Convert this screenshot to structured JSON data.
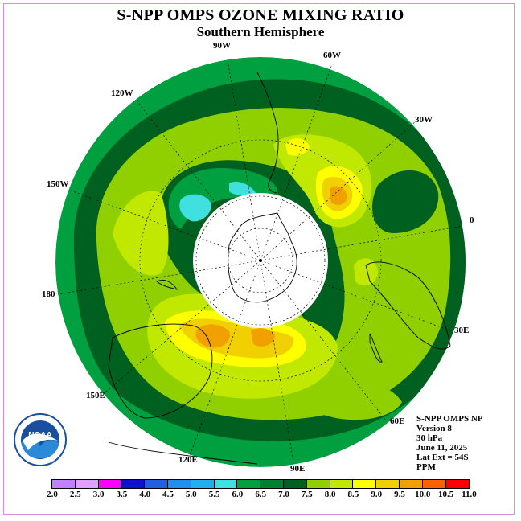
{
  "title": "S-NPP OMPS OZONE MIXING RATIO",
  "subtitle": "Southern Hemisphere",
  "longitude_labels": [
    "90W",
    "60W",
    "120W",
    "30W",
    "150W",
    "0",
    "180",
    "30E",
    "150E",
    "60E",
    "120E",
    "90E"
  ],
  "info": {
    "instrument": "S-NPP OMPS NP",
    "version": "Version 8",
    "level": "30 hPa",
    "date": "June 11, 2025",
    "lat_ext": "Lat Ext = 54S",
    "units": "PPM"
  },
  "logo_text": "NOAA",
  "colorbar": {
    "ticks": [
      "2.0",
      "2.5",
      "3.0",
      "3.5",
      "4.0",
      "4.5",
      "5.0",
      "5.5",
      "6.0",
      "6.5",
      "7.0",
      "7.5",
      "8.0",
      "8.5",
      "9.0",
      "9.5",
      "10.0",
      "10.5",
      "11.0"
    ],
    "colors": [
      "#c080ff",
      "#e0a0ff",
      "#ff00ff",
      "#1010d0",
      "#2060e0",
      "#2090f0",
      "#20b0f0",
      "#40e0e0",
      "#00a040",
      "#008030",
      "#006020",
      "#90d000",
      "#c0e800",
      "#ffff00",
      "#f0d000",
      "#f0a000",
      "#ff6000",
      "#ff0000",
      "#905030"
    ]
  },
  "chart_data": {
    "type": "heatmap",
    "projection": "south-polar stereographic",
    "variable": "ozone mixing ratio",
    "units": "PPM",
    "pressure_level": "30 hPa",
    "latitude_extent": "54S",
    "date": "June 11, 2025",
    "value_range": [
      2.0,
      11.0
    ],
    "contour_interval": 0.5,
    "regions": [
      {
        "name": "outer ring",
        "value_range": [
          6.5,
          7.0
        ]
      },
      {
        "name": "mid-latitude band",
        "value_range": [
          7.5,
          8.0
        ]
      },
      {
        "name": "max over Australia south coast",
        "value_range": [
          9.0,
          9.5
        ]
      },
      {
        "name": "max over South Atlantic",
        "value_range": [
          9.0,
          9.5
        ]
      },
      {
        "name": "min near 90W",
        "value_range": [
          5.5,
          6.0
        ]
      },
      {
        "name": "polar night (no data)",
        "value_range": null
      }
    ]
  }
}
